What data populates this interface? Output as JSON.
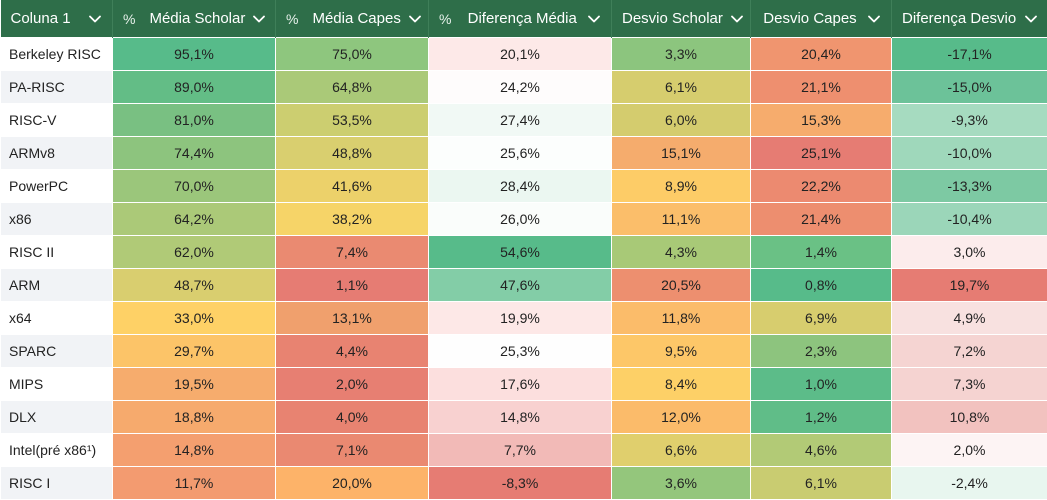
{
  "header": {
    "percent_symbol": "%",
    "columns": [
      {
        "label": "Coluna 1",
        "percent": false
      },
      {
        "label": "Média Scholar",
        "percent": true
      },
      {
        "label": "Média Capes",
        "percent": true
      },
      {
        "label": "Diferença Média",
        "percent": true
      },
      {
        "label": "Desvio Scholar",
        "percent": false
      },
      {
        "label": "Desvio Capes",
        "percent": false
      },
      {
        "label": "Diferença Desvio",
        "percent": false
      }
    ],
    "dropdown_icon": "chevron-down-icon"
  },
  "rows": [
    {
      "name": "Berkeley RISC",
      "cells": [
        {
          "text": "95,1%",
          "color": "#57bb8a"
        },
        {
          "text": "75,0%",
          "color": "#8ec67e"
        },
        {
          "text": "20,1%",
          "color": "#fde9e8"
        },
        {
          "text": "3,3%",
          "color": "#8cc57e"
        },
        {
          "text": "20,4%",
          "color": "#f0956f"
        },
        {
          "text": "-17,1%",
          "color": "#57bb8a"
        }
      ]
    },
    {
      "name": "PA-RISC",
      "cells": [
        {
          "text": "89,0%",
          "color": "#63bd86"
        },
        {
          "text": "64,8%",
          "color": "#aac978"
        },
        {
          "text": "24,2%",
          "color": "#fefcfc"
        },
        {
          "text": "6,1%",
          "color": "#d6cd6e"
        },
        {
          "text": "21,1%",
          "color": "#ee8f6f"
        },
        {
          "text": "-15,0%",
          "color": "#6cc299"
        }
      ]
    },
    {
      "name": "RISC-V",
      "cells": [
        {
          "text": "81,0%",
          "color": "#79c082"
        },
        {
          "text": "53,5%",
          "color": "#ccce70"
        },
        {
          "text": "27,4%",
          "color": "#f1f9f5"
        },
        {
          "text": "6,0%",
          "color": "#d4cc6e"
        },
        {
          "text": "15,3%",
          "color": "#f6ac6d"
        },
        {
          "text": "-9,3%",
          "color": "#a6dbc0"
        }
      ]
    },
    {
      "name": "ARMv8",
      "cells": [
        {
          "text": "74,4%",
          "color": "#8dc47e"
        },
        {
          "text": "48,8%",
          "color": "#d9cf6f"
        },
        {
          "text": "25,6%",
          "color": "#fcfefd"
        },
        {
          "text": "15,1%",
          "color": "#f5ac6d"
        },
        {
          "text": "25,1%",
          "color": "#e67c73"
        },
        {
          "text": "-10,0%",
          "color": "#9fd8bb"
        }
      ]
    },
    {
      "name": "PowerPC",
      "cells": [
        {
          "text": "70,0%",
          "color": "#9bc67b"
        },
        {
          "text": "41,6%",
          "color": "#ecd16a"
        },
        {
          "text": "28,4%",
          "color": "#ebf7f1"
        },
        {
          "text": "8,9%",
          "color": "#fdcc67"
        },
        {
          "text": "22,2%",
          "color": "#ec8a70"
        },
        {
          "text": "-13,3%",
          "color": "#7dc9a3"
        }
      ]
    },
    {
      "name": "x86",
      "cells": [
        {
          "text": "64,2%",
          "color": "#abc978"
        },
        {
          "text": "38,2%",
          "color": "#f6d468"
        },
        {
          "text": "26,0%",
          "color": "#fafdfb"
        },
        {
          "text": "11,1%",
          "color": "#fbbe6a"
        },
        {
          "text": "21,4%",
          "color": "#ed8e6f"
        },
        {
          "text": "-10,4%",
          "color": "#9bd6b9"
        }
      ]
    },
    {
      "name": "RISC II",
      "cells": [
        {
          "text": "62,0%",
          "color": "#b0ca77"
        },
        {
          "text": "7,4%",
          "color": "#ea8a71"
        },
        {
          "text": "54,6%",
          "color": "#57bb8a"
        },
        {
          "text": "4,3%",
          "color": "#a8c977"
        },
        {
          "text": "1,4%",
          "color": "#6ac185"
        },
        {
          "text": "3,0%",
          "color": "#fcecec"
        }
      ]
    },
    {
      "name": "ARM",
      "cells": [
        {
          "text": "48,7%",
          "color": "#d9ce6f"
        },
        {
          "text": "1,1%",
          "color": "#e67c73"
        },
        {
          "text": "47,6%",
          "color": "#83cda7"
        },
        {
          "text": "20,5%",
          "color": "#ed8f6f"
        },
        {
          "text": "0,8%",
          "color": "#57bb8a"
        },
        {
          "text": "19,7%",
          "color": "#e67c73"
        }
      ]
    },
    {
      "name": "x64",
      "cells": [
        {
          "text": "33,0%",
          "color": "#fed166"
        },
        {
          "text": "13,1%",
          "color": "#f0a06d"
        },
        {
          "text": "19,9%",
          "color": "#fde8e7"
        },
        {
          "text": "11,8%",
          "color": "#fbbc6a"
        },
        {
          "text": "6,9%",
          "color": "#d7cd6e"
        },
        {
          "text": "4,9%",
          "color": "#f8e1e0"
        }
      ]
    },
    {
      "name": "SPARC",
      "cells": [
        {
          "text": "29,7%",
          "color": "#fcc468"
        },
        {
          "text": "4,4%",
          "color": "#e88371"
        },
        {
          "text": "25,3%",
          "color": "#fefefe"
        },
        {
          "text": "9,5%",
          "color": "#fdc768"
        },
        {
          "text": "2,3%",
          "color": "#8dc47e"
        },
        {
          "text": "7,2%",
          "color": "#f5d4d2"
        }
      ]
    },
    {
      "name": "MIPS",
      "cells": [
        {
          "text": "19,5%",
          "color": "#f6ac6d"
        },
        {
          "text": "2,0%",
          "color": "#e77f72"
        },
        {
          "text": "17,6%",
          "color": "#fcdfde"
        },
        {
          "text": "8,4%",
          "color": "#fdd067"
        },
        {
          "text": "1,0%",
          "color": "#5cbc89"
        },
        {
          "text": "7,3%",
          "color": "#f5d3d1"
        }
      ]
    },
    {
      "name": "DLX",
      "cells": [
        {
          "text": "18,8%",
          "color": "#f6aa6d"
        },
        {
          "text": "4,0%",
          "color": "#e88371"
        },
        {
          "text": "14,8%",
          "color": "#f8d1d0"
        },
        {
          "text": "12,0%",
          "color": "#fbbb6a"
        },
        {
          "text": "1,2%",
          "color": "#60bd88"
        },
        {
          "text": "10,8%",
          "color": "#f2c2bf"
        }
      ]
    },
    {
      "name": "Intel(pré x86¹)",
      "cells": [
        {
          "text": "14,8%",
          "color": "#f49f6f"
        },
        {
          "text": "7,1%",
          "color": "#ea8971"
        },
        {
          "text": "7,7%",
          "color": "#f2bab7"
        },
        {
          "text": "6,6%",
          "color": "#e0cf6d"
        },
        {
          "text": "4,6%",
          "color": "#b2ca76"
        },
        {
          "text": "2,0%",
          "color": "#fdf4f4"
        }
      ]
    },
    {
      "name": "RISC I",
      "cells": [
        {
          "text": "11,7%",
          "color": "#f39b70"
        },
        {
          "text": "20,0%",
          "color": "#fdb369"
        },
        {
          "text": "-8,3%",
          "color": "#e67c73"
        },
        {
          "text": "3,6%",
          "color": "#94c67c"
        },
        {
          "text": "6,1%",
          "color": "#c9cc71"
        },
        {
          "text": "-2,4%",
          "color": "#e8f6ef"
        }
      ]
    }
  ]
}
